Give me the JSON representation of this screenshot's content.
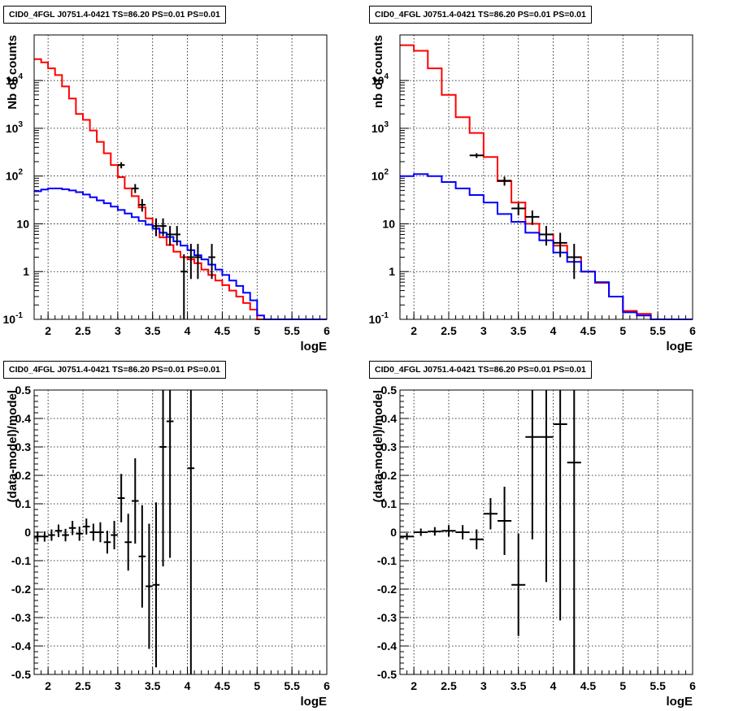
{
  "chart_data": [
    {
      "type": "line",
      "title": "CID0_4FGL J0751.4-0421 TS=86.20 PS=0.01 PS=0.01",
      "xlabel": "logE",
      "ylabel": "Nb of counts",
      "xlim": [
        1.8,
        6
      ],
      "ylim": [
        0.1,
        90000
      ],
      "yscale": "log",
      "grid": true,
      "xticks": [
        "2",
        "2.5",
        "3",
        "3.5",
        "4",
        "4.5",
        "5",
        "5.5",
        "6"
      ],
      "yticks": [
        "10^-1",
        "1",
        "10",
        "10^2",
        "10^3",
        "10^4"
      ],
      "bin_edges": [
        1.8,
        1.9,
        2.0,
        2.1,
        2.2,
        2.3,
        2.4,
        2.5,
        2.6,
        2.7,
        2.8,
        2.9,
        3.0,
        3.1,
        3.2,
        3.3,
        3.4,
        3.5,
        3.6,
        3.7,
        3.8,
        3.9,
        4.0,
        4.1,
        4.2,
        4.3,
        4.4,
        4.5,
        4.6,
        4.7,
        4.8,
        4.9,
        5.0,
        5.1,
        5.2,
        5.3,
        5.4,
        5.5,
        5.6,
        5.7,
        5.8,
        5.9,
        6.0
      ],
      "series": [
        {
          "color": "#ff0000",
          "values": [
            28000,
            24000,
            18000,
            13000,
            7500,
            4200,
            2000,
            1500,
            900,
            520,
            300,
            170,
            95,
            55,
            38,
            22,
            13,
            8,
            5.2,
            3.6,
            2.6,
            2.0,
            1.8,
            1.5,
            1.1,
            0.85,
            0.65,
            0.52,
            0.4,
            0.3,
            0.22,
            0.16,
            0.1,
            0.1,
            0.1,
            0.1,
            0.1,
            0.1,
            0.1,
            0.1,
            0.1,
            0.1
          ]
        },
        {
          "color": "#0000ff",
          "values": [
            48,
            52,
            55,
            55,
            53,
            50,
            46,
            41,
            36,
            31,
            27,
            23,
            19.5,
            16.5,
            13.8,
            11.5,
            9.6,
            7.9,
            6.5,
            5.3,
            4.3,
            3.5,
            2.8,
            2.2,
            1.8,
            1.4,
            1.1,
            0.85,
            0.65,
            0.5,
            0.36,
            0.25,
            0.12,
            0.1,
            0.1,
            0.1,
            0.1,
            0.1,
            0.1,
            0.1,
            0.1,
            0.1
          ]
        }
      ],
      "points": [
        {
          "x": 3.05,
          "y": 170,
          "lo": 145,
          "hi": 195
        },
        {
          "x": 3.25,
          "y": 55,
          "lo": 44,
          "hi": 68
        },
        {
          "x": 3.35,
          "y": 25,
          "lo": 18,
          "hi": 33
        },
        {
          "x": 3.55,
          "y": 9,
          "lo": 5.5,
          "hi": 13
        },
        {
          "x": 3.65,
          "y": 9,
          "lo": 5.5,
          "hi": 13
        },
        {
          "x": 3.75,
          "y": 6,
          "lo": 3.5,
          "hi": 9
        },
        {
          "x": 3.85,
          "y": 6,
          "lo": 3.5,
          "hi": 9
        },
        {
          "x": 3.95,
          "y": 1,
          "lo": 0.1,
          "hi": 2.3
        },
        {
          "x": 4.05,
          "y": 2,
          "lo": 0.7,
          "hi": 3.8
        },
        {
          "x": 4.15,
          "y": 2,
          "lo": 0.7,
          "hi": 3.8
        },
        {
          "x": 4.35,
          "y": 2,
          "lo": 0.7,
          "hi": 3.8
        }
      ]
    },
    {
      "type": "line",
      "title": "CID0_4FGL J0751.4-0421 TS=86.20 PS=0.01 PS=0.01",
      "xlabel": "logE",
      "ylabel": "nb of counts",
      "xlim": [
        1.8,
        6
      ],
      "ylim": [
        0.1,
        90000
      ],
      "yscale": "log",
      "grid": true,
      "xticks": [
        "2",
        "2.5",
        "3",
        "3.5",
        "4",
        "4.5",
        "5",
        "5.5",
        "6"
      ],
      "yticks": [
        "10^-1",
        "1",
        "10",
        "10^2",
        "10^3",
        "10^4"
      ],
      "bin_edges": [
        1.8,
        2.0,
        2.2,
        2.4,
        2.6,
        2.8,
        3.0,
        3.2,
        3.4,
        3.6,
        3.8,
        4.0,
        4.2,
        4.4,
        4.6,
        4.8,
        5.0,
        5.2,
        5.4,
        5.6,
        5.8,
        6.0
      ],
      "series": [
        {
          "color": "#ff0000",
          "values": [
            55000,
            42000,
            18000,
            5000,
            1700,
            800,
            250,
            78,
            28,
            10,
            6,
            3.5,
            2.0,
            1.0,
            0.58,
            0.3,
            0.15,
            0.13,
            0.1,
            0.1,
            0.1
          ]
        },
        {
          "color": "#0000ff",
          "values": [
            100,
            110,
            100,
            75,
            55,
            40,
            28,
            16,
            11,
            6.5,
            4.5,
            2.5,
            1.6,
            1.0,
            0.6,
            0.3,
            0.14,
            0.12,
            0.1,
            0.1,
            0.1
          ]
        }
      ],
      "points": [
        {
          "x": 2.9,
          "y": 270,
          "lo": 240,
          "hi": 300
        },
        {
          "x": 3.3,
          "y": 80,
          "lo": 63,
          "hi": 97
        },
        {
          "x": 3.5,
          "y": 21,
          "lo": 15,
          "hi": 27
        },
        {
          "x": 3.7,
          "y": 14,
          "lo": 9.5,
          "hi": 19
        },
        {
          "x": 3.9,
          "y": 6,
          "lo": 3.5,
          "hi": 9
        },
        {
          "x": 4.1,
          "y": 4,
          "lo": 2.0,
          "hi": 6.5
        },
        {
          "x": 4.3,
          "y": 2,
          "lo": 0.7,
          "hi": 3.8
        }
      ]
    },
    {
      "type": "scatter",
      "title": "CID0_4FGL J0751.4-0421 TS=86.20 PS=0.01 PS=0.01",
      "xlabel": "logE",
      "ylabel": "(data-model)/model",
      "xlim": [
        1.8,
        6
      ],
      "ylim": [
        -0.5,
        0.5
      ],
      "grid": true,
      "xticks": [
        "2",
        "2.5",
        "3",
        "3.5",
        "4",
        "4.5",
        "5",
        "5.5",
        "6"
      ],
      "yticks": [
        "-0.5",
        "-0.4",
        "-0.3",
        "-0.2",
        "-0.1",
        "0",
        "0.1",
        "0.2",
        "0.3",
        "0.4",
        "0.5"
      ],
      "points": [
        {
          "x": 1.85,
          "y": -0.015,
          "err": 0.018
        },
        {
          "x": 1.95,
          "y": -0.015,
          "err": 0.018
        },
        {
          "x": 2.05,
          "y": -0.01,
          "err": 0.02
        },
        {
          "x": 2.15,
          "y": 0.005,
          "err": 0.022
        },
        {
          "x": 2.25,
          "y": -0.01,
          "err": 0.022
        },
        {
          "x": 2.35,
          "y": 0.015,
          "err": 0.025
        },
        {
          "x": 2.45,
          "y": -0.005,
          "err": 0.025
        },
        {
          "x": 2.55,
          "y": 0.02,
          "err": 0.028
        },
        {
          "x": 2.65,
          "y": 0.0,
          "err": 0.03
        },
        {
          "x": 2.75,
          "y": 0.0,
          "err": 0.035
        },
        {
          "x": 2.85,
          "y": -0.035,
          "err": 0.04
        },
        {
          "x": 2.95,
          "y": -0.01,
          "err": 0.05
        },
        {
          "x": 3.05,
          "y": 0.12,
          "err": 0.085
        },
        {
          "x": 3.15,
          "y": -0.035,
          "err": 0.1
        },
        {
          "x": 3.25,
          "y": 0.11,
          "err": 0.15
        },
        {
          "x": 3.35,
          "y": -0.085,
          "err": 0.18
        },
        {
          "x": 3.45,
          "y": -0.19,
          "err": 0.22
        },
        {
          "x": 3.55,
          "y": -0.185,
          "err": 0.29
        },
        {
          "x": 3.65,
          "y": 0.3,
          "err": 0.42
        },
        {
          "x": 3.75,
          "y": 0.39,
          "err": 0.48
        },
        {
          "x": 4.05,
          "y": 0.225,
          "err": 1.0
        }
      ]
    },
    {
      "type": "scatter",
      "title": "CID0_4FGL J0751.4-0421 TS=86.20 PS=0.01 PS=0.01",
      "xlabel": "logE",
      "ylabel": "(data-model)/model",
      "xlim": [
        1.8,
        6
      ],
      "ylim": [
        -0.5,
        0.5
      ],
      "grid": true,
      "xticks": [
        "2",
        "2.5",
        "3",
        "3.5",
        "4",
        "4.5",
        "5",
        "5.5",
        "6"
      ],
      "yticks": [
        "-0.5",
        "-0.4",
        "-0.3",
        "-0.2",
        "-0.1",
        "0",
        "0.1",
        "0.2",
        "0.3",
        "0.4",
        "0.5"
      ],
      "points": [
        {
          "x": 1.9,
          "y": -0.015,
          "err": 0.012
        },
        {
          "x": 2.1,
          "y": 0.0,
          "err": 0.013
        },
        {
          "x": 2.3,
          "y": 0.003,
          "err": 0.015
        },
        {
          "x": 2.5,
          "y": 0.005,
          "err": 0.02
        },
        {
          "x": 2.7,
          "y": 0.0,
          "err": 0.025
        },
        {
          "x": 2.9,
          "y": -0.025,
          "err": 0.035
        },
        {
          "x": 3.1,
          "y": 0.065,
          "err": 0.055
        },
        {
          "x": 3.3,
          "y": 0.04,
          "err": 0.12
        },
        {
          "x": 3.5,
          "y": -0.185,
          "err": 0.18
        },
        {
          "x": 3.7,
          "y": 0.335,
          "err": 0.36
        },
        {
          "x": 3.9,
          "y": 0.335,
          "err": 0.51
        },
        {
          "x": 4.1,
          "y": 0.38,
          "err": 0.69
        },
        {
          "x": 4.3,
          "y": 0.245,
          "err": 1.0
        }
      ]
    }
  ]
}
